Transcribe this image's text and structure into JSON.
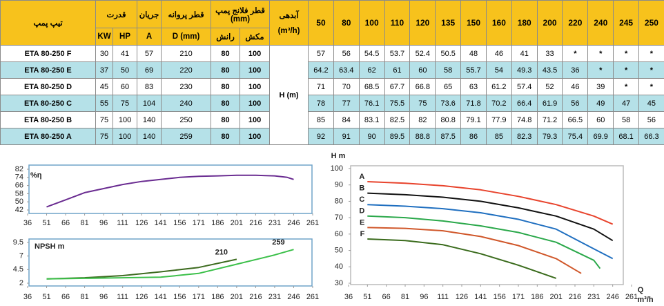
{
  "table": {
    "headers": {
      "type": "تیپ پمپ",
      "power": "قدرت",
      "current": "جریان",
      "impeller": "قطر پروانه",
      "flange": "قطر فلانج پمپ",
      "flange_unit": "(mm)",
      "flow": "آبدهی",
      "flow_unit": "(m³/h)"
    },
    "subheaders": [
      "KW",
      "HP",
      "A",
      "D (mm)",
      "رانش",
      "مکش"
    ],
    "flows": [
      50,
      80,
      100,
      110,
      120,
      135,
      150,
      160,
      180,
      200,
      220,
      240,
      245,
      250
    ],
    "head_label": "H (m)",
    "rows": [
      {
        "name": "ETA 80-250 F",
        "specs": [
          30,
          41,
          57,
          210,
          80,
          100
        ],
        "heads": [
          57,
          56,
          54.5,
          53.7,
          52.4,
          50.5,
          48,
          46,
          41,
          33,
          "*",
          "*",
          "*",
          "*"
        ]
      },
      {
        "name": "ETA 80-250 E",
        "specs": [
          37,
          50,
          69,
          220,
          80,
          100
        ],
        "heads": [
          64.2,
          63.4,
          62,
          61,
          60,
          58,
          55.7,
          54,
          49.3,
          43.5,
          36,
          "*",
          "*",
          "*"
        ]
      },
      {
        "name": "ETA 80-250 D",
        "specs": [
          45,
          60,
          83,
          230,
          80,
          100
        ],
        "heads": [
          71,
          70,
          68.5,
          67.7,
          66.8,
          65,
          63,
          61.2,
          57.4,
          52,
          46,
          39,
          "*",
          "*"
        ]
      },
      {
        "name": "ETA 80-250 C",
        "specs": [
          55,
          75,
          104,
          240,
          80,
          100
        ],
        "heads": [
          78,
          77,
          76.1,
          75.5,
          75,
          73.6,
          71.8,
          70.2,
          66.4,
          61.9,
          56,
          49,
          47,
          45
        ]
      },
      {
        "name": "ETA 80-250 B",
        "specs": [
          75,
          100,
          140,
          250,
          80,
          100
        ],
        "heads": [
          85,
          84,
          83.1,
          82.5,
          82,
          80.8,
          79.1,
          77.9,
          74.8,
          71.2,
          66.5,
          60,
          58,
          56
        ]
      },
      {
        "name": "ETA 80-250 A",
        "specs": [
          75,
          100,
          140,
          259,
          80,
          100
        ],
        "heads": [
          92,
          91,
          90,
          89.5,
          88.8,
          87.5,
          86,
          85,
          82.3,
          79.3,
          75.4,
          69.9,
          68.1,
          66.3
        ]
      }
    ]
  },
  "chart_data": [
    {
      "type": "line",
      "ylabel": "%η",
      "xlim": [
        36,
        261
      ],
      "xticks": [
        36,
        51,
        66,
        81,
        96,
        111,
        126,
        141,
        156,
        171,
        186,
        201,
        216,
        231,
        246,
        261
      ],
      "ylim": [
        42,
        82
      ],
      "yticks": [
        42,
        50,
        58,
        66,
        74,
        82
      ],
      "series": [
        {
          "color": "#6a2c91",
          "x": [
            51,
            66,
            81,
            96,
            111,
            126,
            141,
            156,
            171,
            186,
            201,
            216,
            231,
            241,
            246
          ],
          "values": [
            45,
            52,
            59,
            63,
            67,
            70,
            72,
            74,
            75,
            75.5,
            76,
            76,
            75.5,
            74,
            72
          ]
        }
      ]
    },
    {
      "type": "line",
      "ylabel": "NPSH m",
      "xlim": [
        36,
        261
      ],
      "xticks": [
        36,
        51,
        66,
        81,
        96,
        111,
        126,
        141,
        156,
        171,
        186,
        201,
        216,
        231,
        246,
        261
      ],
      "ylim": [
        2,
        9.5
      ],
      "yticks": [
        2,
        4.5,
        7,
        9.5
      ],
      "series": [
        {
          "name": "210",
          "color": "#3d6b1f",
          "x": [
            51,
            81,
            111,
            141,
            171,
            201
          ],
          "values": [
            2.8,
            3.0,
            3.4,
            4.1,
            4.9,
            6.4
          ]
        },
        {
          "name": "259",
          "color": "#3cc04a",
          "x": [
            51,
            81,
            111,
            141,
            171,
            201,
            231,
            246
          ],
          "values": [
            2.8,
            2.9,
            3.0,
            3.1,
            3.8,
            5.5,
            7.2,
            8.2
          ]
        }
      ]
    },
    {
      "type": "line",
      "ylabel": "H m",
      "xlabel": "Q",
      "xunit": "m³/h",
      "xlim": [
        36,
        261
      ],
      "xticks": [
        36,
        51,
        66,
        81,
        96,
        111,
        126,
        141,
        156,
        171,
        186,
        201,
        216,
        231,
        246,
        261
      ],
      "ylim": [
        30,
        100
      ],
      "yticks": [
        30,
        40,
        50,
        60,
        70,
        80,
        90,
        100
      ],
      "series": [
        {
          "name": "A",
          "color": "#e8432c",
          "x": [
            51,
            81,
            111,
            141,
            171,
            201,
            231,
            246
          ],
          "values": [
            92,
            91,
            89.5,
            87,
            83,
            78,
            71,
            66
          ]
        },
        {
          "name": "B",
          "color": "#111111",
          "x": [
            51,
            81,
            111,
            141,
            171,
            201,
            231,
            246
          ],
          "values": [
            85,
            84,
            82.5,
            80,
            76,
            71,
            63,
            56
          ]
        },
        {
          "name": "C",
          "color": "#1f6fc0",
          "x": [
            51,
            81,
            111,
            141,
            171,
            201,
            231,
            246
          ],
          "values": [
            78,
            77,
            75.5,
            73,
            69,
            63,
            51,
            45
          ]
        },
        {
          "name": "D",
          "color": "#2aa84a",
          "x": [
            51,
            81,
            111,
            141,
            171,
            201,
            231,
            236
          ],
          "values": [
            71,
            70,
            68,
            65,
            61,
            55,
            44,
            39
          ]
        },
        {
          "name": "E",
          "color": "#d0572a",
          "x": [
            51,
            81,
            111,
            141,
            171,
            201,
            221
          ],
          "values": [
            64,
            63.5,
            62,
            58.5,
            53,
            45,
            36
          ]
        },
        {
          "name": "F",
          "color": "#3a6b1c",
          "x": [
            51,
            81,
            111,
            141,
            171,
            201
          ],
          "values": [
            57,
            56,
            53.5,
            48,
            41,
            33
          ]
        }
      ]
    }
  ]
}
